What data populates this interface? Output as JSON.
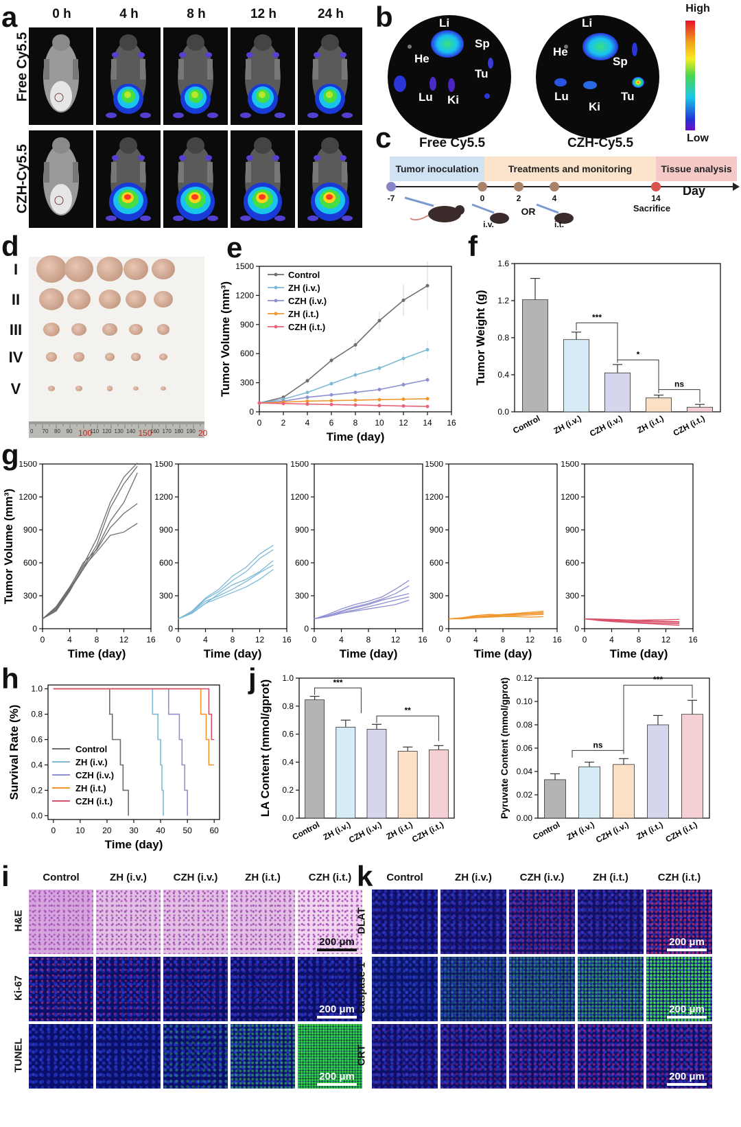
{
  "panel_letters": {
    "a": "a",
    "b": "b",
    "c": "c",
    "d": "d",
    "e": "e",
    "f": "f",
    "g": "g",
    "h": "h",
    "i": "i",
    "j": "j",
    "k": "k"
  },
  "panel_a": {
    "time_labels": [
      "0 h",
      "4 h",
      "8 h",
      "12 h",
      "24 h"
    ],
    "row_labels": [
      "Free Cy5.5",
      "CZH-Cy5.5"
    ]
  },
  "panel_b": {
    "organs_free": [
      "Li",
      "He",
      "Sp",
      "Tu",
      "Lu",
      "Ki"
    ],
    "organs_czh": [
      "Li",
      "He",
      "Sp",
      "Lu",
      "Ki",
      "Tu"
    ],
    "labels": [
      "Free Cy5.5",
      "CZH-Cy5.5"
    ],
    "scale_high": "High",
    "scale_low": "Low"
  },
  "panel_c": {
    "phases": [
      "Tumor inoculation",
      "Treatments and monitoring",
      "Tissue analysis"
    ],
    "days": [
      "-7",
      "0",
      "2",
      "4",
      "14"
    ],
    "axis_label": "Day",
    "routes": [
      "i.v.",
      "OR",
      "i.t."
    ],
    "sacrifice": "Sacrifice",
    "colors": {
      "phase1": "#cfe3f5",
      "phase2": "#fbe3cc",
      "phase3": "#f4c9c8"
    }
  },
  "panel_d": {
    "groups": [
      "I",
      "II",
      "III",
      "IV",
      "V"
    ],
    "ruler_numbers": [
      "0",
      "70",
      "80",
      "90",
      "100",
      "110",
      "120",
      "130",
      "140",
      "150",
      "160",
      "170",
      "180",
      "190",
      "20"
    ]
  },
  "chart_data": [
    {
      "id": "e",
      "type": "line",
      "xlabel": "Time (day)",
      "ylabel": "Tumor Volume (mm³)",
      "xlim": [
        0,
        16
      ],
      "ylim": [
        0,
        1500
      ],
      "xticks": [
        0,
        2,
        4,
        6,
        8,
        10,
        12,
        14,
        16
      ],
      "yticks": [
        0,
        300,
        600,
        900,
        1200,
        1500
      ],
      "x": [
        0,
        2,
        4,
        6,
        8,
        10,
        12,
        14
      ],
      "series": [
        {
          "name": "Control",
          "color": "#6e6e6e",
          "values": [
            90,
            150,
            320,
            530,
            690,
            940,
            1150,
            1300
          ],
          "err": [
            10,
            20,
            30,
            40,
            60,
            90,
            160,
            250
          ]
        },
        {
          "name": "ZH (i.v.)",
          "color": "#7cb9d6",
          "values": [
            90,
            130,
            200,
            290,
            380,
            450,
            550,
            640
          ],
          "err": [
            10,
            15,
            20,
            25,
            40,
            50,
            70,
            90
          ]
        },
        {
          "name": "CZH (i.v.)",
          "color": "#8d8fd1",
          "values": [
            90,
            110,
            150,
            175,
            200,
            230,
            280,
            330
          ],
          "err": [
            8,
            10,
            12,
            15,
            18,
            20,
            30,
            40
          ]
        },
        {
          "name": "ZH (i.t.)",
          "color": "#f0962c",
          "values": [
            90,
            100,
            110,
            115,
            120,
            125,
            130,
            135
          ],
          "err": [
            5,
            5,
            6,
            6,
            6,
            7,
            8,
            8
          ]
        },
        {
          "name": "CZH (i.t.)",
          "color": "#e8647a",
          "values": [
            90,
            85,
            80,
            75,
            70,
            65,
            60,
            55
          ],
          "err": [
            5,
            5,
            5,
            5,
            5,
            5,
            5,
            5
          ]
        }
      ]
    },
    {
      "id": "f",
      "type": "bar",
      "ylabel": "Tumor Weight (g)",
      "ylim": [
        0,
        1.6
      ],
      "yticks": [
        0.0,
        0.4,
        0.8,
        1.2,
        1.6
      ],
      "categories": [
        "Control",
        "ZH (i.v.)",
        "CZH (i.v.)",
        "ZH (i.t.)",
        "CZH (i.t.)"
      ],
      "values": [
        1.21,
        0.78,
        0.42,
        0.15,
        0.05
      ],
      "err": [
        0.23,
        0.08,
        0.09,
        0.03,
        0.03
      ],
      "colors": [
        "#b4b4b4",
        "#d6ecf7",
        "#d5d5ee",
        "#fbe0c6",
        "#f6cfd5"
      ],
      "significance": [
        "***",
        "*",
        "ns"
      ]
    },
    {
      "id": "g",
      "type": "line",
      "xlabel": "Time (day)",
      "ylabel": "Tumor Volume (mm³)",
      "xlim": [
        0,
        16
      ],
      "ylim": [
        0,
        1500
      ],
      "xticks": [
        0,
        4,
        8,
        12,
        16
      ],
      "yticks": [
        0,
        300,
        600,
        900,
        1200,
        1500
      ],
      "x": [
        0,
        2,
        4,
        6,
        8,
        10,
        12,
        14
      ],
      "groups": [
        {
          "color": "#6e6e6e",
          "series": [
            [
              90,
              200,
              380,
              580,
              820,
              1150,
              1380,
              1510
            ],
            [
              90,
              180,
              360,
              560,
              760,
              1100,
              1320,
              1480
            ],
            [
              90,
              170,
              350,
              540,
              730,
              980,
              1150,
              1420
            ],
            [
              90,
              190,
              370,
              600,
              720,
              920,
              1050,
              1140
            ],
            [
              90,
              160,
              340,
              560,
              700,
              850,
              880,
              960
            ]
          ]
        },
        {
          "color": "#7cb9d6",
          "series": [
            [
              90,
              160,
              280,
              360,
              480,
              560,
              680,
              760
            ],
            [
              90,
              150,
              270,
              340,
              440,
              520,
              640,
              720
            ],
            [
              90,
              140,
              230,
              320,
              400,
              450,
              520,
              620
            ],
            [
              90,
              150,
              250,
              300,
              360,
              430,
              510,
              580
            ],
            [
              90,
              140,
              230,
              280,
              330,
              380,
              450,
              540
            ]
          ]
        },
        {
          "color": "#8d8fd1",
          "series": [
            [
              90,
              130,
              180,
              220,
              250,
              290,
              360,
              440
            ],
            [
              90,
              120,
              160,
              200,
              230,
              270,
              320,
              390
            ],
            [
              90,
              120,
              160,
              190,
              220,
              260,
              290,
              320
            ],
            [
              90,
              110,
              150,
              170,
              200,
              230,
              260,
              290
            ],
            [
              90,
              110,
              140,
              160,
              180,
              200,
              220,
              260
            ]
          ]
        },
        {
          "color": "#f0962c",
          "series": [
            [
              90,
              100,
              110,
              120,
              130,
              140,
              150,
              160
            ],
            [
              90,
              100,
              120,
              130,
              125,
              135,
              140,
              150
            ],
            [
              90,
              95,
              105,
              115,
              120,
              130,
              135,
              140
            ],
            [
              90,
              95,
              110,
              110,
              120,
              120,
              125,
              130
            ],
            [
              90,
              90,
              100,
              105,
              110,
              110,
              105,
              110
            ]
          ]
        },
        {
          "color": "#d8506a",
          "series": [
            [
              90,
              85,
              80,
              78,
              75,
              70,
              68,
              65
            ],
            [
              90,
              80,
              75,
              70,
              66,
              64,
              60,
              55
            ],
            [
              90,
              80,
              70,
              62,
              58,
              52,
              48,
              45
            ],
            [
              90,
              75,
              65,
              58,
              50,
              45,
              38,
              30
            ],
            [
              90,
              88,
              85,
              80,
              78,
              80,
              82,
              85
            ]
          ]
        }
      ]
    },
    {
      "id": "h",
      "type": "line",
      "xlabel": "Time (day)",
      "ylabel": "Survival Rate (%)",
      "xlim": [
        0,
        60
      ],
      "ylim": [
        0,
        1.0
      ],
      "xticks": [
        0,
        10,
        20,
        30,
        40,
        50,
        60
      ],
      "yticks": [
        0.0,
        0.2,
        0.4,
        0.6,
        0.8,
        1.0
      ],
      "series": [
        {
          "name": "Control",
          "color": "#6e6e6e",
          "steps": [
            [
              0,
              1.0
            ],
            [
              21,
              1.0
            ],
            [
              21,
              0.8
            ],
            [
              22,
              0.8
            ],
            [
              22,
              0.6
            ],
            [
              25,
              0.6
            ],
            [
              25,
              0.4
            ],
            [
              26,
              0.4
            ],
            [
              26,
              0.2
            ],
            [
              28,
              0.2
            ],
            [
              28,
              0.0
            ]
          ]
        },
        {
          "name": "ZH (i.v.)",
          "color": "#7cb9d6",
          "steps": [
            [
              0,
              1.0
            ],
            [
              37,
              1.0
            ],
            [
              37,
              0.8
            ],
            [
              39,
              0.8
            ],
            [
              39,
              0.6
            ],
            [
              40,
              0.6
            ],
            [
              40,
              0.4
            ],
            [
              40.5,
              0.4
            ],
            [
              40.5,
              0.2
            ],
            [
              41,
              0.2
            ],
            [
              41,
              0.0
            ]
          ]
        },
        {
          "name": "CZH (i.v.)",
          "color": "#8d8fd1",
          "steps": [
            [
              0,
              1.0
            ],
            [
              43,
              1.0
            ],
            [
              43,
              0.8
            ],
            [
              47,
              0.8
            ],
            [
              47,
              0.6
            ],
            [
              48,
              0.6
            ],
            [
              48,
              0.4
            ],
            [
              49,
              0.4
            ],
            [
              49,
              0.2
            ],
            [
              50,
              0.2
            ],
            [
              50,
              0.0
            ]
          ]
        },
        {
          "name": "ZH (i.t.)",
          "color": "#f0962c",
          "steps": [
            [
              0,
              1.0
            ],
            [
              55,
              1.0
            ],
            [
              55,
              0.8
            ],
            [
              57,
              0.8
            ],
            [
              57,
              0.6
            ],
            [
              58,
              0.6
            ],
            [
              58,
              0.4
            ],
            [
              60,
              0.4
            ]
          ]
        },
        {
          "name": "CZH (i.t.)",
          "color": "#d8506a",
          "steps": [
            [
              0,
              1.0
            ],
            [
              58,
              1.0
            ],
            [
              58,
              0.8
            ],
            [
              59,
              0.8
            ],
            [
              59,
              0.6
            ],
            [
              60,
              0.6
            ]
          ]
        }
      ]
    },
    {
      "id": "j1",
      "type": "bar",
      "ylabel": "LA Content (mmol/gprot)",
      "ylim": [
        0,
        1.0
      ],
      "yticks": [
        0.0,
        0.2,
        0.4,
        0.6,
        0.8,
        1.0
      ],
      "categories": [
        "Control",
        "ZH (i.v.)",
        "CZH (i.v.)",
        "ZH (i.t.)",
        "CZH (i.t.)"
      ],
      "values": [
        0.845,
        0.65,
        0.635,
        0.478,
        0.488
      ],
      "err": [
        0.025,
        0.05,
        0.035,
        0.03,
        0.03
      ],
      "colors": [
        "#b4b4b4",
        "#d6ecf7",
        "#d5d5ee",
        "#fbe0c6",
        "#f6cfd5"
      ],
      "significance": [
        "***",
        "**"
      ]
    },
    {
      "id": "j2",
      "type": "bar",
      "ylabel": "Pyruvate Content (mmol/gprot)",
      "ylim": [
        0,
        0.12
      ],
      "yticks": [
        0.0,
        0.02,
        0.04,
        0.06,
        0.08,
        0.1,
        0.12
      ],
      "categories": [
        "Control",
        "ZH (i.v.)",
        "CZH (i.v.)",
        "ZH (i.t.)",
        "CZH (i.t.)"
      ],
      "values": [
        0.033,
        0.044,
        0.046,
        0.08,
        0.089
      ],
      "err": [
        0.005,
        0.004,
        0.005,
        0.008,
        0.012
      ],
      "colors": [
        "#b4b4b4",
        "#d6ecf7",
        "#fbe0c6",
        "#d5d5ee",
        "#f6cfd5"
      ],
      "significance": [
        "ns",
        "***"
      ]
    }
  ],
  "panel_i": {
    "columns": [
      "Control",
      "ZH (i.v.)",
      "CZH (i.v.)",
      "ZH (i.t.)",
      "CZH (i.t.)"
    ],
    "rows": [
      "H&E",
      "Ki-67",
      "TUNEL"
    ],
    "scale": "200 μm"
  },
  "panel_k": {
    "columns": [
      "Control",
      "ZH (i.v.)",
      "CZH (i.v.)",
      "ZH (i.t.)",
      "CZH (i.t.)"
    ],
    "rows": [
      "DLAT",
      "Caspase-1",
      "CRT"
    ],
    "scale": "200 μm"
  }
}
